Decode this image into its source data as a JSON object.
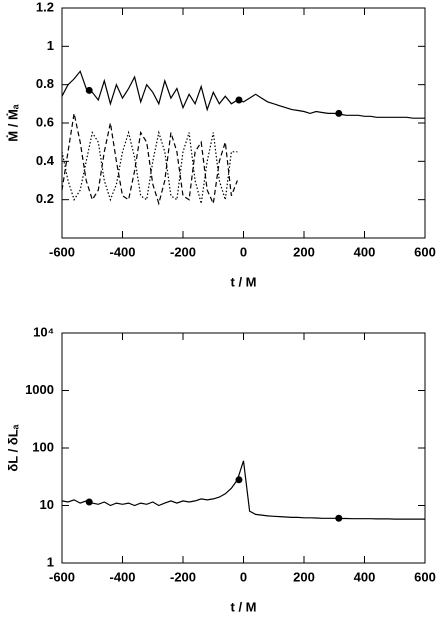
{
  "chart_data": [
    {
      "type": "line",
      "xlabel": "t / M",
      "ylabel": "Ṁ / Ṁₐ",
      "x": [
        -600,
        -580,
        -560,
        -540,
        -520,
        -500,
        -480,
        -460,
        -440,
        -420,
        -400,
        -380,
        -360,
        -340,
        -320,
        -300,
        -280,
        -260,
        -240,
        -220,
        -200,
        -180,
        -160,
        -140,
        -120,
        -100,
        -80,
        -60,
        -40,
        -20,
        0,
        20,
        40,
        60,
        80,
        100,
        120,
        140,
        160,
        180,
        200,
        220,
        240,
        260,
        280,
        300,
        320,
        340,
        360,
        380,
        400,
        420,
        440,
        460,
        480,
        500,
        520,
        540,
        560,
        580,
        600
      ],
      "series": [
        {
          "color": "#000000",
          "dash": "solid",
          "values": [
            0.74,
            0.8,
            0.83,
            0.87,
            0.78,
            0.76,
            0.72,
            0.82,
            0.7,
            0.8,
            0.73,
            0.78,
            0.84,
            0.71,
            0.8,
            0.76,
            0.7,
            0.82,
            0.73,
            0.78,
            0.68,
            0.75,
            0.7,
            0.79,
            0.67,
            0.76,
            0.7,
            0.74,
            0.7,
            0.72,
            0.71,
            0.73,
            0.75,
            0.73,
            0.71,
            0.7,
            0.69,
            0.68,
            0.67,
            0.665,
            0.66,
            0.65,
            0.66,
            0.655,
            0.65,
            0.65,
            0.645,
            0.64,
            0.64,
            0.64,
            0.635,
            0.635,
            0.63,
            0.63,
            0.63,
            0.63,
            0.63,
            0.63,
            0.625,
            0.625,
            0.625
          ]
        },
        {
          "color": "#000000",
          "dash": "dashed",
          "values": [
            0.25,
            0.45,
            0.65,
            0.5,
            0.3,
            0.2,
            0.25,
            0.45,
            0.6,
            0.4,
            0.22,
            0.2,
            0.35,
            0.55,
            0.5,
            0.28,
            0.18,
            0.3,
            0.55,
            0.45,
            0.22,
            0.2,
            0.45,
            0.5,
            0.25,
            0.18,
            0.4,
            0.5,
            0.22,
            0.3,
            null,
            null,
            null,
            null,
            null,
            null,
            null,
            null,
            null,
            null,
            null,
            null,
            null,
            null,
            null,
            null,
            null,
            null,
            null,
            null,
            null,
            null,
            null,
            null,
            null,
            null,
            null,
            null,
            null,
            null,
            null
          ]
        },
        {
          "color": "#000000",
          "dash": "dotted",
          "values": [
            0.45,
            0.3,
            0.2,
            0.25,
            0.4,
            0.55,
            0.5,
            0.3,
            0.2,
            0.28,
            0.45,
            0.55,
            0.42,
            0.22,
            0.2,
            0.4,
            0.55,
            0.45,
            0.22,
            0.2,
            0.45,
            0.55,
            0.3,
            0.18,
            0.4,
            0.55,
            0.3,
            0.2,
            0.45,
            0.45,
            null,
            null,
            null,
            null,
            null,
            null,
            null,
            null,
            null,
            null,
            null,
            null,
            null,
            null,
            null,
            null,
            null,
            null,
            null,
            null,
            null,
            null,
            null,
            null,
            null,
            null,
            null,
            null,
            null,
            null,
            null
          ]
        }
      ],
      "points": {
        "x": [
          -510,
          -15,
          315
        ],
        "y": [
          0.77,
          0.72,
          0.65
        ]
      },
      "xlim": [
        -600,
        600
      ],
      "xticks": [
        -600,
        -400,
        -200,
        0,
        200,
        400,
        600
      ],
      "ylim": [
        0,
        1.2
      ],
      "yticks": [
        0.2,
        0.4,
        0.6,
        0.8,
        1,
        1.2
      ],
      "log_scale": false
    },
    {
      "type": "line",
      "xlabel": "t / M",
      "ylabel": "δL / δLₐ",
      "x": [
        -600,
        -580,
        -560,
        -540,
        -520,
        -500,
        -480,
        -460,
        -440,
        -420,
        -400,
        -380,
        -360,
        -340,
        -320,
        -300,
        -280,
        -260,
        -240,
        -220,
        -200,
        -180,
        -160,
        -140,
        -120,
        -100,
        -80,
        -60,
        -40,
        -20,
        0,
        20,
        40,
        60,
        80,
        100,
        120,
        140,
        160,
        180,
        200,
        220,
        240,
        260,
        280,
        300,
        320,
        340,
        360,
        380,
        400,
        420,
        440,
        460,
        480,
        500,
        520,
        540,
        560,
        580,
        600
      ],
      "series": [
        {
          "color": "#000000",
          "dash": "solid",
          "values": [
            12,
            11.5,
            12.5,
            11,
            12,
            11,
            10.5,
            11.5,
            10,
            11,
            10.5,
            11,
            10,
            11,
            10.5,
            11.5,
            10,
            11,
            12,
            11,
            12,
            11.5,
            12,
            13,
            12.5,
            13,
            14,
            16,
            20,
            28,
            60,
            8,
            7,
            6.8,
            6.6,
            6.5,
            6.4,
            6.3,
            6.2,
            6.2,
            6.1,
            6.1,
            6.05,
            6,
            6,
            6,
            5.95,
            5.95,
            5.9,
            5.9,
            5.9,
            5.9,
            5.85,
            5.85,
            5.85,
            5.8,
            5.8,
            5.8,
            5.8,
            5.8,
            5.8
          ]
        }
      ],
      "points": {
        "x": [
          -510,
          -15,
          315
        ],
        "y": [
          11.5,
          28,
          6
        ]
      },
      "xlim": [
        -600,
        600
      ],
      "xticks": [
        -600,
        -400,
        -200,
        0,
        200,
        400,
        600
      ],
      "ylim": [
        1,
        10000
      ],
      "yticks": [
        1,
        10,
        100,
        1000,
        {
          "value": 10000,
          "label": "10⁴"
        }
      ],
      "log_scale": true
    }
  ]
}
